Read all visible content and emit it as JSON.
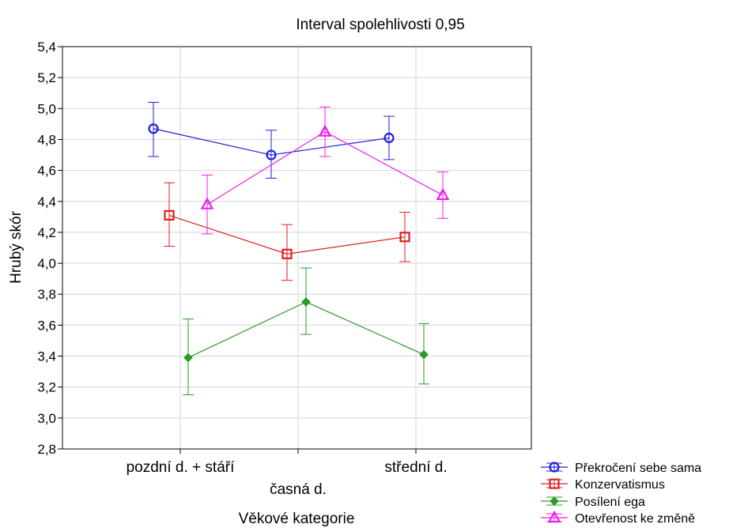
{
  "chart_data": {
    "type": "line",
    "title": "Interval spolehlivosti 0,95",
    "xlabel": "Věkové kategorie",
    "ylabel": "Hrubý skór",
    "ylim": [
      2.8,
      5.4
    ],
    "yticks": [
      "2,8",
      "3,0",
      "3,2",
      "3,4",
      "3,6",
      "3,8",
      "4,0",
      "4,2",
      "4,4",
      "4,6",
      "4,8",
      "5,0",
      "5,2",
      "5,4"
    ],
    "categories": [
      "pozdní d. + stáří",
      "časná d.",
      "střední d."
    ],
    "grid": true,
    "legend_position": "bottom-right",
    "series": [
      {
        "name": "Překročení sebe sama",
        "color": "#1f1fdc",
        "marker": "circle",
        "values": [
          4.87,
          4.7,
          4.81
        ],
        "lower": [
          4.69,
          4.55,
          4.67
        ],
        "upper": [
          5.04,
          4.86,
          4.95
        ]
      },
      {
        "name": "Konzervatismus",
        "color": "#e01e1e",
        "marker": "square",
        "values": [
          4.31,
          4.06,
          4.17
        ],
        "lower": [
          4.11,
          3.89,
          4.01
        ],
        "upper": [
          4.52,
          4.25,
          4.33
        ]
      },
      {
        "name": "Posílení ega",
        "color": "#2a9a2a",
        "marker": "diamond",
        "values": [
          3.39,
          3.75,
          3.41
        ],
        "lower": [
          3.15,
          3.54,
          3.22
        ],
        "upper": [
          3.64,
          3.97,
          3.61
        ]
      },
      {
        "name": "Otevřenost ke změně",
        "color": "#ee1eee",
        "marker": "triangle",
        "values": [
          4.38,
          4.85,
          4.44
        ],
        "lower": [
          4.19,
          4.69,
          4.29
        ],
        "upper": [
          4.57,
          5.01,
          4.59
        ]
      }
    ]
  }
}
